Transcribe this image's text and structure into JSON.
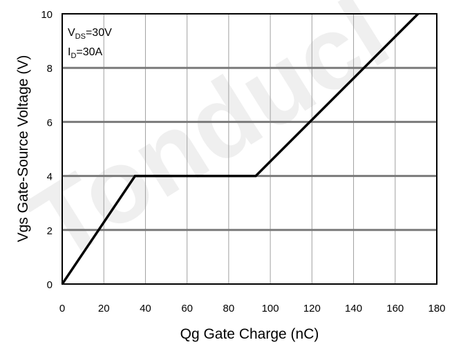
{
  "watermark": "Tonducl",
  "chart_data": {
    "type": "line",
    "xlabel": "Qg Gate Charge (nC)",
    "ylabel": "Vgs Gate-Source Voltage (V)",
    "xlim": [
      0,
      180
    ],
    "ylim": [
      0,
      10
    ],
    "xticks": [
      "0",
      "20",
      "40",
      "60",
      "80",
      "100",
      "120",
      "140",
      "160",
      "180"
    ],
    "yticks": [
      "0",
      "2",
      "4",
      "6",
      "8",
      "10"
    ],
    "grid": true,
    "annotations": {
      "vds": {
        "prefix": "V",
        "sub": "DS",
        "suffix": "=30V"
      },
      "id": {
        "prefix": "I",
        "sub": "D",
        "suffix": "=30A"
      }
    },
    "series": [
      {
        "x": [
          0,
          35,
          93,
          171
        ],
        "y": [
          0,
          4,
          4,
          10
        ]
      }
    ]
  }
}
